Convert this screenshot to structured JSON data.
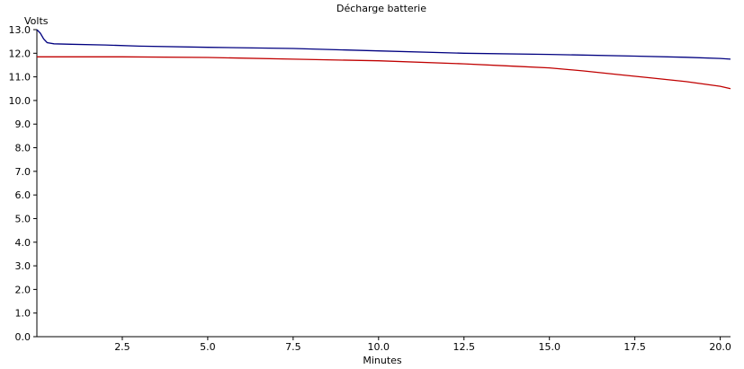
{
  "chart_data": {
    "type": "line",
    "title": "Décharge batterie",
    "xlabel": "Minutes",
    "ylabel": "Volts",
    "xlim": [
      0,
      20.3
    ],
    "ylim": [
      0,
      13.0
    ],
    "xticks": [
      2.5,
      5.0,
      7.5,
      10.0,
      12.5,
      15.0,
      17.5,
      20.0
    ],
    "xtick_labels": [
      "2.5",
      "5.0",
      "7.5",
      "10.0",
      "12.5",
      "15.0",
      "17.5",
      "20.0"
    ],
    "yticks": [
      0,
      1,
      2,
      3,
      4,
      5,
      6,
      7,
      8,
      9,
      10,
      11,
      12,
      13
    ],
    "ytick_labels": [
      "0.0",
      "1.0",
      "2.0",
      "3.0",
      "4.0",
      "5.0",
      "6.0",
      "7.0",
      "8.0",
      "9.0",
      "10.0",
      "11.0",
      "12.0",
      "13.0"
    ],
    "grid": false,
    "legend": "none",
    "series": [
      {
        "color": "#000080",
        "x": [
          0,
          0.1,
          0.2,
          0.3,
          0.5,
          1,
          2,
          3,
          5,
          7.5,
          10,
          12.5,
          15,
          17.5,
          19,
          20,
          20.3
        ],
        "y": [
          13.0,
          12.85,
          12.6,
          12.45,
          12.4,
          12.38,
          12.35,
          12.3,
          12.25,
          12.2,
          12.1,
          12.0,
          11.95,
          11.88,
          11.83,
          11.78,
          11.75
        ]
      },
      {
        "color": "#c00000",
        "x": [
          0,
          2.5,
          5,
          7.5,
          10,
          12.5,
          14,
          15,
          16,
          17,
          18,
          19,
          20,
          20.3
        ],
        "y": [
          11.85,
          11.85,
          11.82,
          11.75,
          11.68,
          11.55,
          11.45,
          11.38,
          11.25,
          11.1,
          10.95,
          10.8,
          10.6,
          10.5
        ]
      }
    ]
  }
}
